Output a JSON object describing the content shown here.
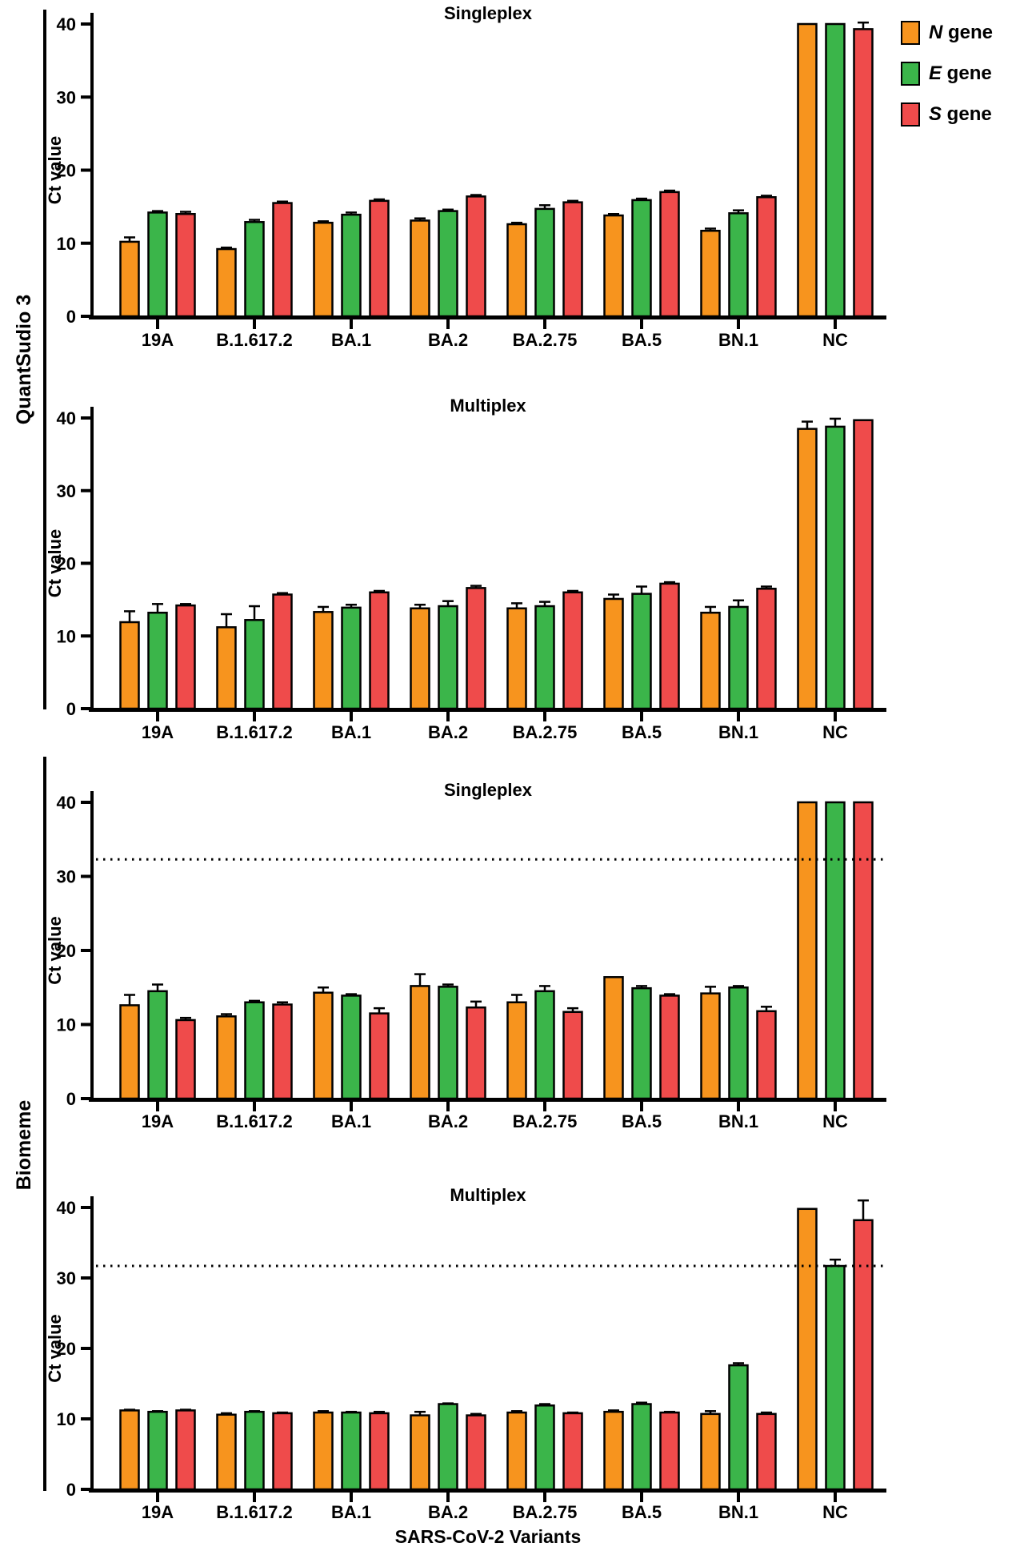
{
  "figure": {
    "background": "#ffffff",
    "row_labels": [
      {
        "label": "QuantSudio 3"
      },
      {
        "label": "Biomeme"
      }
    ],
    "y_axis_title": "Ct value",
    "x_axis_title": "SARS-CoV-2 Variants",
    "legend": [
      {
        "label_italic": "N",
        "label_rest": " gene",
        "color": "#F7941E"
      },
      {
        "label_italic": "E",
        "label_rest": " gene",
        "color": "#3BB54A"
      },
      {
        "label_italic": "S",
        "label_rest": " gene",
        "color": "#EF4B4B"
      }
    ],
    "colors": {
      "n_gene": "#F7941E",
      "e_gene": "#3BB54A",
      "s_gene": "#EF4B4B",
      "axis": "#000000"
    }
  },
  "chart_data": [
    {
      "type": "bar",
      "panel": "QuantSudio 3",
      "title": "Singleplex",
      "ylabel": "Ct value",
      "xlabel": "SARS-CoV-2 Variants",
      "ylim": [
        0,
        40
      ],
      "yticks": [
        0,
        10,
        20,
        30,
        40
      ],
      "grid": false,
      "cutoff_line": null,
      "categories": [
        "19A",
        "B.1.617.2",
        "BA.1",
        "BA.2",
        "BA.2.75",
        "BA.5",
        "BN.1",
        "NC"
      ],
      "series": [
        {
          "name": "N gene",
          "color": "#F7941E",
          "values": [
            10.2,
            9.2,
            12.8,
            13.1,
            12.6,
            13.8,
            11.7,
            40.0
          ],
          "errors": [
            0.6,
            0.2,
            0.2,
            0.3,
            0.2,
            0.2,
            0.3,
            0
          ]
        },
        {
          "name": "E gene",
          "color": "#3BB54A",
          "values": [
            14.2,
            12.9,
            13.9,
            14.4,
            14.7,
            15.9,
            14.1,
            40.0
          ],
          "errors": [
            0.2,
            0.3,
            0.3,
            0.2,
            0.5,
            0.2,
            0.4,
            0
          ]
        },
        {
          "name": "S gene",
          "color": "#EF4B4B",
          "values": [
            14.0,
            15.5,
            15.8,
            16.4,
            15.6,
            17.0,
            16.3,
            39.3
          ],
          "errors": [
            0.3,
            0.2,
            0.2,
            0.2,
            0.2,
            0.2,
            0.2,
            0.9
          ]
        }
      ]
    },
    {
      "type": "bar",
      "panel": "QuantSudio 3",
      "title": "Multiplex",
      "ylabel": "Ct value",
      "xlabel": "SARS-CoV-2 Variants",
      "ylim": [
        0,
        40
      ],
      "yticks": [
        0,
        10,
        20,
        30,
        40
      ],
      "grid": false,
      "cutoff_line": null,
      "categories": [
        "19A",
        "B.1.617.2",
        "BA.1",
        "BA.2",
        "BA.2.75",
        "BA.5",
        "BN.1",
        "NC"
      ],
      "series": [
        {
          "name": "N gene",
          "color": "#F7941E",
          "values": [
            11.9,
            11.2,
            13.3,
            13.8,
            13.8,
            15.1,
            13.2,
            38.5
          ],
          "errors": [
            1.5,
            1.8,
            0.7,
            0.5,
            0.7,
            0.6,
            0.8,
            1.0
          ]
        },
        {
          "name": "E gene",
          "color": "#3BB54A",
          "values": [
            13.2,
            12.2,
            13.9,
            14.1,
            14.1,
            15.8,
            14.0,
            38.8
          ],
          "errors": [
            1.2,
            1.9,
            0.4,
            0.7,
            0.6,
            1.0,
            0.9,
            1.1
          ]
        },
        {
          "name": "S gene",
          "color": "#EF4B4B",
          "values": [
            14.2,
            15.7,
            16.0,
            16.6,
            16.0,
            17.2,
            16.5,
            39.7
          ],
          "errors": [
            0.2,
            0.2,
            0.2,
            0.3,
            0.2,
            0.2,
            0.3,
            0
          ]
        }
      ]
    },
    {
      "type": "bar",
      "panel": "Biomeme",
      "title": "Singleplex",
      "ylabel": "Ct value",
      "xlabel": "SARS-CoV-2 Variants",
      "ylim": [
        0,
        40
      ],
      "yticks": [
        0,
        10,
        20,
        30,
        40
      ],
      "grid": false,
      "cutoff_line": 32.3,
      "categories": [
        "19A",
        "B.1.617.2",
        "BA.1",
        "BA.2",
        "BA.2.75",
        "BA.5",
        "BN.1",
        "NC"
      ],
      "series": [
        {
          "name": "N gene",
          "color": "#F7941E",
          "values": [
            12.6,
            11.1,
            14.3,
            15.2,
            13.0,
            16.4,
            14.2,
            40.0
          ],
          "errors": [
            1.4,
            0.3,
            0.7,
            1.6,
            1.0,
            0,
            0.9,
            0
          ]
        },
        {
          "name": "E gene",
          "color": "#3BB54A",
          "values": [
            14.5,
            13.0,
            13.9,
            15.1,
            14.5,
            14.9,
            15.0,
            40.0
          ],
          "errors": [
            0.9,
            0.2,
            0.2,
            0.3,
            0.7,
            0.3,
            0.2,
            0
          ]
        },
        {
          "name": "S gene",
          "color": "#EF4B4B",
          "values": [
            10.6,
            12.7,
            11.5,
            12.3,
            11.7,
            13.9,
            11.8,
            40.0
          ],
          "errors": [
            0.3,
            0.3,
            0.7,
            0.8,
            0.5,
            0.2,
            0.6,
            0
          ]
        }
      ]
    },
    {
      "type": "bar",
      "panel": "Biomeme",
      "title": "Multiplex",
      "ylabel": "Ct value",
      "xlabel": "SARS-CoV-2 Variants",
      "ylim": [
        0,
        40
      ],
      "yticks": [
        0,
        10,
        20,
        30,
        40
      ],
      "grid": false,
      "cutoff_line": 31.7,
      "categories": [
        "19A",
        "B.1.617.2",
        "BA.1",
        "BA.2",
        "BA.2.75",
        "BA.5",
        "BN.1",
        "NC"
      ],
      "series": [
        {
          "name": "N gene",
          "color": "#F7941E",
          "values": [
            11.2,
            10.6,
            10.9,
            10.5,
            10.9,
            11.0,
            10.7,
            39.8
          ],
          "errors": [
            0.1,
            0.2,
            0.2,
            0.5,
            0.2,
            0.2,
            0.4,
            0
          ]
        },
        {
          "name": "E gene",
          "color": "#3BB54A",
          "values": [
            11.0,
            11.0,
            10.9,
            12.1,
            11.9,
            12.1,
            17.6,
            31.7
          ],
          "errors": [
            0.1,
            0.1,
            0.1,
            0.1,
            0.2,
            0.2,
            0.3,
            0.9
          ]
        },
        {
          "name": "S gene",
          "color": "#EF4B4B",
          "values": [
            11.2,
            10.8,
            10.8,
            10.5,
            10.8,
            10.9,
            10.7,
            38.2
          ],
          "errors": [
            0.1,
            0.1,
            0.2,
            0.2,
            0.1,
            0.1,
            0.2,
            2.8
          ]
        }
      ]
    }
  ]
}
